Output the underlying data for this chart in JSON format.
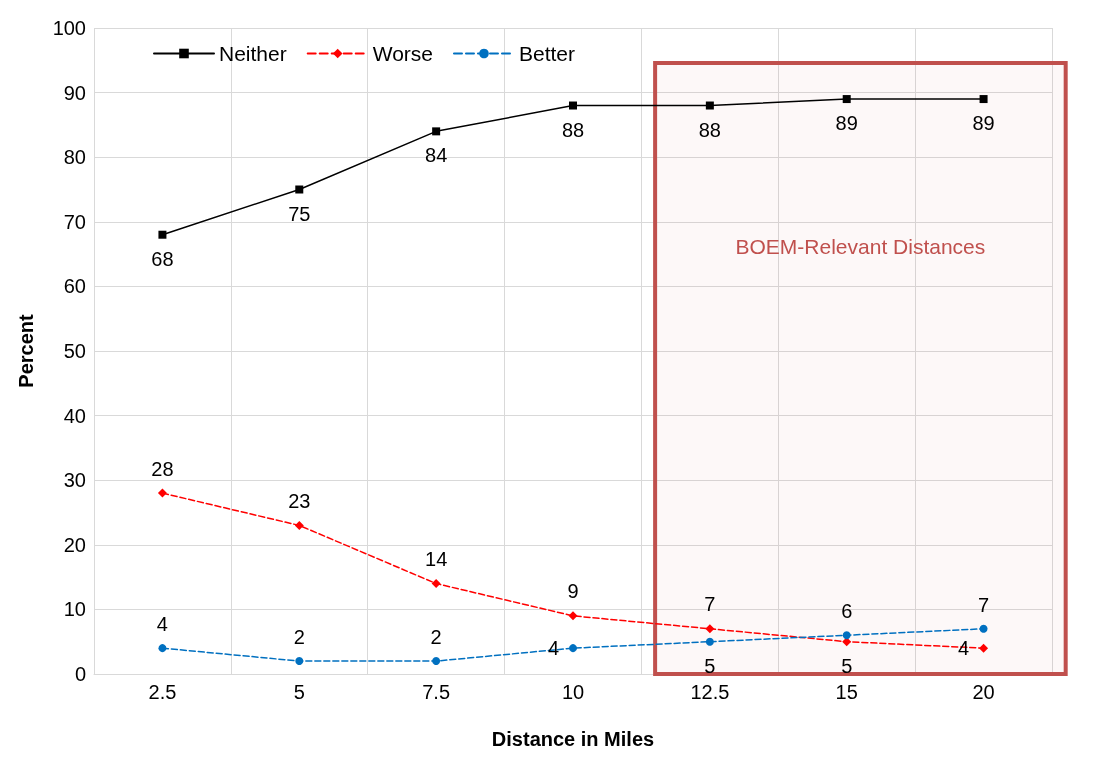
{
  "chart_data": {
    "type": "line",
    "xlabel": "Distance in Miles",
    "ylabel": "Percent",
    "categories": [
      "2.5",
      "5",
      "7.5",
      "10",
      "12.5",
      "15",
      "20"
    ],
    "series": [
      {
        "name": "Neither",
        "color": "#000000",
        "marker": "square",
        "line_style": "solid",
        "values": [
          68,
          75,
          84,
          88,
          88,
          89,
          89
        ]
      },
      {
        "name": "Worse",
        "color": "#ff0000",
        "marker": "diamond",
        "line_style": "dashed",
        "values": [
          28,
          23,
          14,
          9,
          7,
          5,
          4
        ]
      },
      {
        "name": "Better",
        "color": "#0070c0",
        "marker": "circle",
        "line_style": "dashed",
        "values": [
          4,
          2,
          2,
          4,
          5,
          6,
          7
        ]
      }
    ],
    "ylim": [
      0,
      100
    ],
    "yticks": [
      0,
      10,
      20,
      30,
      40,
      50,
      60,
      70,
      80,
      90,
      100
    ],
    "grid": true,
    "legend": "top left",
    "data_labels": true,
    "bands": [
      {
        "axis": "x",
        "from": "12.5",
        "to": "20",
        "label": "BOEM-Relevant Distances",
        "color": "#c0504d"
      }
    ]
  }
}
